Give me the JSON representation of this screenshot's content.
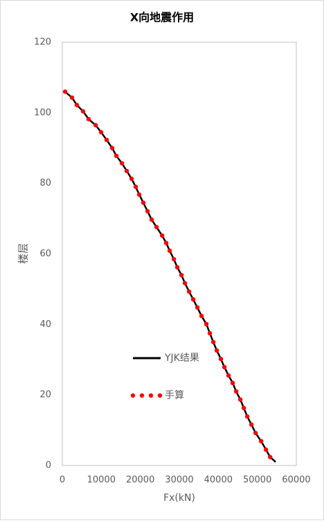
{
  "chart_data": {
    "type": "line",
    "title": "X向地震作用",
    "xlabel": "Fx(kN)",
    "ylabel": "楼层",
    "xlim": [
      0,
      60000
    ],
    "xticks": [
      0,
      10000,
      20000,
      30000,
      40000,
      50000,
      60000
    ],
    "ylim": [
      0,
      120
    ],
    "yticks": [
      0,
      20,
      40,
      60,
      80,
      100,
      120
    ],
    "grid": false,
    "legend": "center",
    "series": [
      {
        "name": "YJK结果",
        "color": "#000000",
        "style": "line",
        "x": [
          710,
          2480,
          3730,
          5330,
          6750,
          8530,
          9950,
          11370,
          12790,
          13850,
          15280,
          16520,
          17760,
          18830,
          19720,
          20780,
          21850,
          22910,
          24160,
          25580,
          26640,
          27530,
          28600,
          29480,
          30550,
          31440,
          32500,
          33570,
          34630,
          35700,
          36940,
          37830,
          38720,
          39610,
          40670,
          41560,
          42630,
          43690,
          44580,
          45650,
          46540,
          47420,
          48490,
          49560,
          50980,
          52220,
          53290,
          54700
        ],
        "y": [
          106,
          104.3,
          102.2,
          100.4,
          98.2,
          96.5,
          94.5,
          92.3,
          90,
          87.8,
          85.7,
          83.5,
          81.3,
          79,
          76.8,
          74.5,
          72.1,
          69.7,
          67.6,
          65.2,
          63.1,
          60.9,
          58.5,
          56.2,
          54,
          51.7,
          49.3,
          47.1,
          44.8,
          42.4,
          40.1,
          37.5,
          35,
          32.6,
          30.2,
          27.9,
          25.5,
          23.4,
          21,
          18.7,
          16.3,
          13.9,
          11.6,
          9.2,
          6.9,
          4.5,
          2.4,
          1
        ]
      },
      {
        "name": "手算",
        "color": "#ff0000",
        "style": "dots",
        "x": [
          710,
          2480,
          3730,
          5330,
          6750,
          8530,
          9950,
          11370,
          12790,
          13850,
          15280,
          16520,
          17760,
          18830,
          19720,
          20780,
          21850,
          22910,
          24160,
          25580,
          26640,
          27530,
          28600,
          29480,
          30550,
          31440,
          32500,
          33570,
          34630,
          35700,
          36940,
          37830,
          38720,
          39610,
          40670,
          41560,
          42630,
          43690,
          44580,
          45650,
          46540,
          47420,
          48490,
          49560,
          50980,
          52220,
          53290
        ],
        "y": [
          106,
          104.3,
          102.2,
          100.4,
          98.2,
          96.5,
          94.5,
          92.3,
          90,
          87.8,
          85.7,
          83.5,
          81.3,
          79,
          76.8,
          74.5,
          72.1,
          69.7,
          67.6,
          65.2,
          63.1,
          60.9,
          58.5,
          56.2,
          54,
          51.7,
          49.3,
          47.1,
          44.8,
          42.4,
          40.1,
          37.5,
          35,
          32.6,
          30.2,
          27.9,
          25.5,
          23.4,
          21,
          18.7,
          16.3,
          13.9,
          11.6,
          9.2,
          6.9,
          4.5,
          2.4
        ]
      }
    ]
  }
}
